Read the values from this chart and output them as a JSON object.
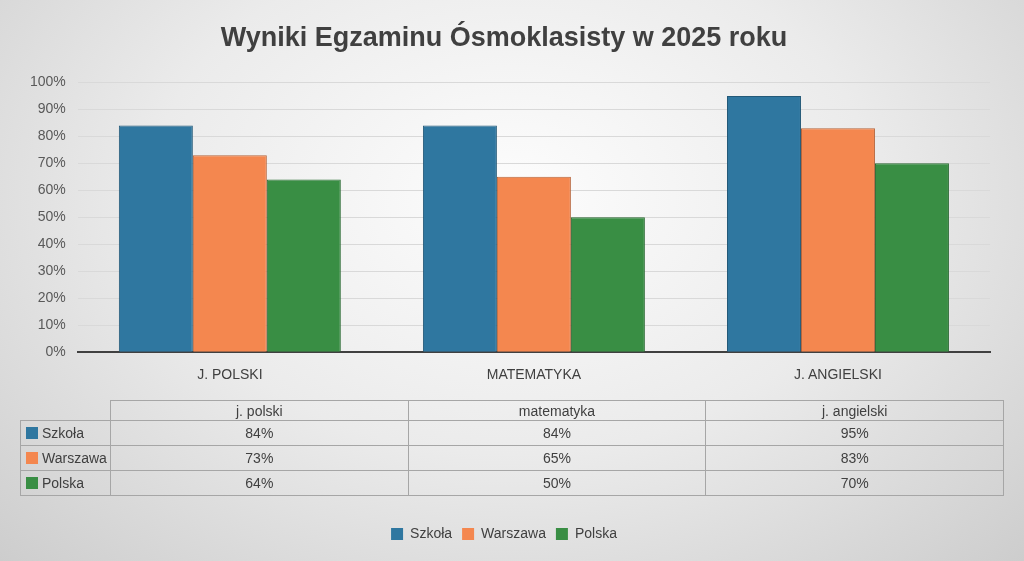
{
  "chart_data": {
    "type": "bar",
    "title": "Wyniki Egzaminu Ósmoklasisty w 2025 roku",
    "categories": [
      "J. POLSKI",
      "MATEMATYKA",
      "J. ANGIELSKI"
    ],
    "series": [
      {
        "name": "Szkoła",
        "color": "#2f77a0",
        "values": [
          84,
          84,
          95
        ],
        "value_labels": [
          "84%",
          "84%",
          "95%"
        ]
      },
      {
        "name": "Warszawa",
        "color": "#f4874f",
        "values": [
          73,
          65,
          83
        ],
        "value_labels": [
          "73%",
          "65%",
          "83%"
        ]
      },
      {
        "name": "Polska",
        "color": "#398e44",
        "values": [
          64,
          50,
          70
        ],
        "value_labels": [
          "64%",
          "50%",
          "70%"
        ]
      }
    ],
    "ylim": [
      0,
      100
    ],
    "yticks": [
      {
        "value": 0,
        "label": "0%"
      },
      {
        "value": 10,
        "label": "10%"
      },
      {
        "value": 20,
        "label": "20%"
      },
      {
        "value": 30,
        "label": "30%"
      },
      {
        "value": 40,
        "label": "40%"
      },
      {
        "value": 50,
        "label": "50%"
      },
      {
        "value": 60,
        "label": "60%"
      },
      {
        "value": 70,
        "label": "70%"
      },
      {
        "value": 80,
        "label": "80%"
      },
      {
        "value": 90,
        "label": "90%"
      },
      {
        "value": 100,
        "label": "100%"
      }
    ],
    "grid": "y",
    "legend": "bottom",
    "annotations": [
      "j. polski",
      "matematyka",
      "j. angielski"
    ]
  }
}
